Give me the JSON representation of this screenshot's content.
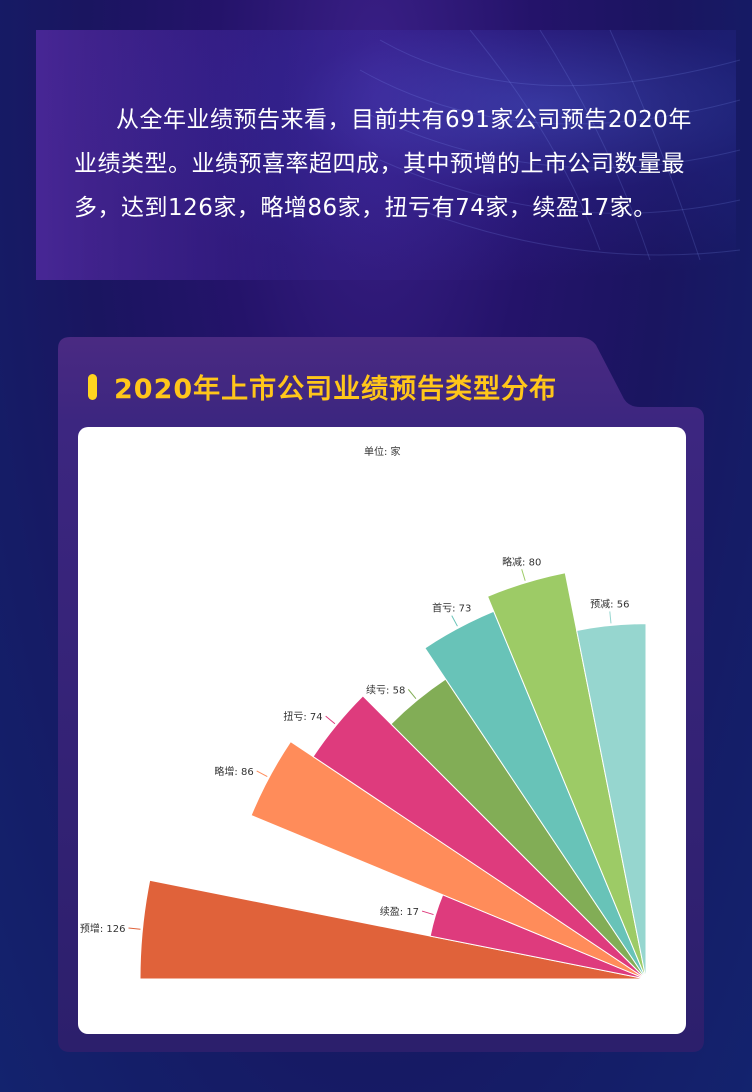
{
  "intro": {
    "text": "从全年业绩预告来看，目前共有691家公司预告2020年业绩类型。业绩预喜率超四成，其中预增的上市公司数量最多，达到126家，略增86家，扭亏有74家，续盈17家。"
  },
  "card": {
    "title": "2020年上市公司业绩预告类型分布"
  },
  "chart_data": {
    "type": "pie",
    "variant": "rose (nightingale), quarter circle",
    "unit_label": "单位: 家",
    "title": "2020年上市公司业绩预告类型分布",
    "categories": [
      "预增",
      "续盈",
      "略增",
      "扭亏",
      "续亏",
      "首亏",
      "略减",
      "预减"
    ],
    "values": [
      126,
      17,
      86,
      74,
      58,
      73,
      80,
      56
    ],
    "colors": [
      "#e0623a",
      "#de3b7d",
      "#ff8c5a",
      "#de3b7d",
      "#82ad56",
      "#68c3b8",
      "#9dcb66",
      "#96d6cf"
    ],
    "legend": "none"
  }
}
